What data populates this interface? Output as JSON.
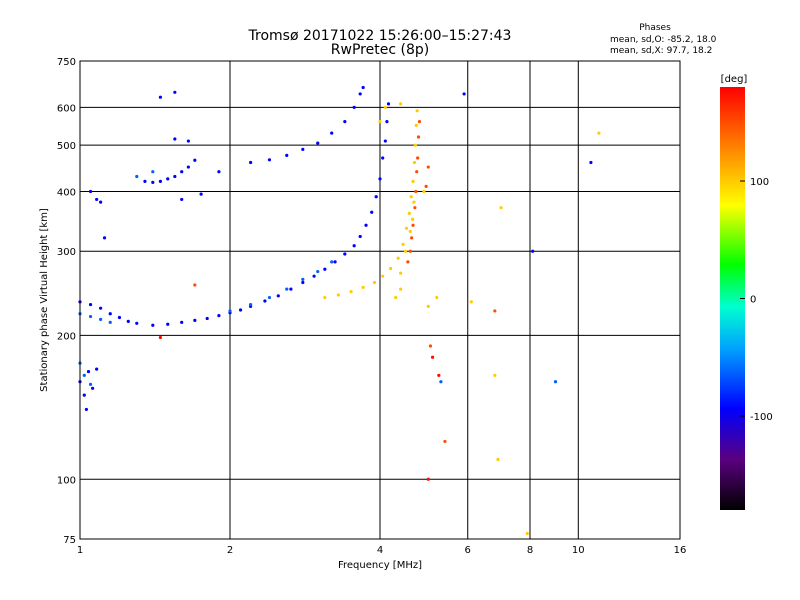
{
  "chart_data": {
    "type": "scatter",
    "title": "Tromsø 20171022 15:26:00–15:27:43",
    "subtitle": "RwPretec (8p)",
    "xlabel": "Frequency [MHz]",
    "ylabel": "Stationary phase Virtual Height [km]",
    "x_scale": "log",
    "y_scale": "log",
    "xlim": [
      1,
      16
    ],
    "ylim": [
      75,
      750
    ],
    "x_ticks": [
      1,
      2,
      4,
      6,
      8,
      10,
      16
    ],
    "y_ticks": [
      75,
      100,
      200,
      300,
      400,
      500,
      600,
      750
    ],
    "grid": true,
    "phase_stats": {
      "heading": "Phases",
      "line_o": "mean, sd,O: -85.2, 18.0",
      "line_x": "mean, sd,X:  97.7, 18.2"
    },
    "colorbar": {
      "label": "[deg]",
      "range": [
        -180,
        180
      ],
      "ticks": [
        100,
        0,
        -100
      ]
    },
    "series": [
      {
        "phase_deg": -100,
        "points": [
          [
            1.0,
            235
          ],
          [
            1.05,
            232
          ],
          [
            1.1,
            228
          ],
          [
            1.15,
            222
          ],
          [
            1.2,
            218
          ],
          [
            1.25,
            214
          ],
          [
            1.3,
            212
          ],
          [
            1.4,
            210
          ],
          [
            1.5,
            211
          ],
          [
            1.6,
            213
          ],
          [
            1.7,
            215
          ],
          [
            1.8,
            217
          ],
          [
            1.9,
            220
          ],
          [
            2.0,
            223
          ],
          [
            2.1,
            226
          ],
          [
            2.2,
            230
          ],
          [
            2.35,
            236
          ],
          [
            2.5,
            242
          ],
          [
            2.65,
            250
          ],
          [
            2.8,
            258
          ],
          [
            2.95,
            266
          ],
          [
            3.1,
            275
          ],
          [
            3.25,
            285
          ],
          [
            3.4,
            296
          ],
          [
            3.55,
            308
          ],
          [
            3.65,
            322
          ],
          [
            3.75,
            340
          ],
          [
            3.85,
            362
          ],
          [
            3.93,
            390
          ],
          [
            4.0,
            425
          ],
          [
            4.05,
            470
          ],
          [
            4.1,
            510
          ],
          [
            4.13,
            560
          ],
          [
            4.16,
            610
          ],
          [
            2.2,
            460
          ],
          [
            2.4,
            466
          ],
          [
            2.6,
            476
          ],
          [
            2.8,
            490
          ],
          [
            3.0,
            505
          ],
          [
            3.2,
            530
          ],
          [
            3.4,
            560
          ],
          [
            3.55,
            600
          ],
          [
            3.65,
            640
          ],
          [
            3.7,
            660
          ],
          [
            1.35,
            420
          ],
          [
            1.4,
            418
          ],
          [
            1.45,
            420
          ],
          [
            1.5,
            425
          ],
          [
            1.55,
            430
          ],
          [
            1.6,
            440
          ],
          [
            1.65,
            450
          ],
          [
            1.7,
            465
          ],
          [
            1.55,
            515
          ],
          [
            1.65,
            510
          ],
          [
            1.6,
            385
          ],
          [
            1.75,
            395
          ],
          [
            1.9,
            440
          ],
          [
            1.0,
            160
          ],
          [
            1.02,
            150
          ],
          [
            1.04,
            168
          ],
          [
            1.06,
            155
          ],
          [
            1.08,
            170
          ],
          [
            1.03,
            140
          ],
          [
            1.05,
            400
          ],
          [
            1.08,
            385
          ],
          [
            1.12,
            320
          ],
          [
            1.1,
            380
          ],
          [
            1.55,
            645
          ],
          [
            1.45,
            630
          ],
          [
            5.9,
            640
          ],
          [
            8.1,
            300
          ],
          [
            10.6,
            460
          ]
        ]
      },
      {
        "phase_deg": -70,
        "points": [
          [
            1.0,
            222
          ],
          [
            1.05,
            219
          ],
          [
            1.1,
            216
          ],
          [
            1.15,
            213
          ],
          [
            1.0,
            175
          ],
          [
            1.02,
            165
          ],
          [
            1.05,
            158
          ],
          [
            2.0,
            225
          ],
          [
            2.2,
            232
          ],
          [
            2.4,
            240
          ],
          [
            2.6,
            250
          ],
          [
            2.8,
            262
          ],
          [
            3.0,
            272
          ],
          [
            3.2,
            285
          ],
          [
            1.3,
            430
          ],
          [
            1.4,
            440
          ],
          [
            9.0,
            160
          ],
          [
            5.3,
            160
          ]
        ]
      },
      {
        "phase_deg": 100,
        "points": [
          [
            3.1,
            240
          ],
          [
            3.3,
            243
          ],
          [
            3.5,
            247
          ],
          [
            3.7,
            252
          ],
          [
            3.9,
            258
          ],
          [
            4.05,
            266
          ],
          [
            4.2,
            276
          ],
          [
            4.35,
            290
          ],
          [
            4.45,
            310
          ],
          [
            4.52,
            335
          ],
          [
            4.58,
            360
          ],
          [
            4.62,
            390
          ],
          [
            4.66,
            420
          ],
          [
            4.69,
            460
          ],
          [
            4.71,
            500
          ],
          [
            4.73,
            550
          ],
          [
            4.75,
            590
          ],
          [
            4.4,
            270
          ],
          [
            4.5,
            300
          ],
          [
            4.6,
            330
          ],
          [
            4.65,
            350
          ],
          [
            4.68,
            380
          ],
          [
            4.4,
            250
          ],
          [
            4.3,
            240
          ],
          [
            4.0,
            560
          ],
          [
            4.1,
            600
          ],
          [
            4.4,
            610
          ],
          [
            4.9,
            400
          ],
          [
            5.0,
            230
          ],
          [
            5.2,
            240
          ],
          [
            6.1,
            235
          ],
          [
            7.0,
            370
          ],
          [
            6.8,
            165
          ],
          [
            6.9,
            110
          ],
          [
            7.9,
            77
          ],
          [
            11.0,
            530
          ]
        ]
      },
      {
        "phase_deg": 150,
        "points": [
          [
            4.55,
            285
          ],
          [
            4.6,
            300
          ],
          [
            4.63,
            320
          ],
          [
            4.66,
            340
          ],
          [
            4.7,
            370
          ],
          [
            4.72,
            400
          ],
          [
            4.74,
            440
          ],
          [
            4.76,
            470
          ],
          [
            4.78,
            520
          ],
          [
            4.8,
            560
          ],
          [
            4.95,
            410
          ],
          [
            5.05,
            190
          ],
          [
            5.0,
            450
          ],
          [
            6.8,
            225
          ],
          [
            1.7,
            255
          ],
          [
            5.4,
            120
          ]
        ]
      },
      {
        "phase_deg": 175,
        "points": [
          [
            1.45,
            198
          ],
          [
            5.0,
            100
          ],
          [
            5.1,
            180
          ],
          [
            5.25,
            165
          ]
        ]
      }
    ]
  }
}
